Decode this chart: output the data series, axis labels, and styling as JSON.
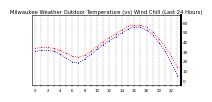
{
  "title": "Milwaukee Weather Outdoor Temperature (vs) Wind Chill (Last 24 Hours)",
  "title_fontsize": 3.8,
  "temp": [
    33,
    34,
    34,
    33,
    31,
    28,
    25,
    24,
    26,
    30,
    35,
    40,
    44,
    48,
    52,
    56,
    57,
    57,
    55,
    50,
    43,
    35,
    25,
    14
  ],
  "windchill": [
    30,
    31,
    31,
    30,
    27,
    23,
    19,
    18,
    22,
    27,
    32,
    37,
    41,
    45,
    49,
    53,
    55,
    55,
    52,
    47,
    39,
    30,
    18,
    5
  ],
  "hours": [
    0,
    1,
    2,
    3,
    4,
    5,
    6,
    7,
    8,
    9,
    10,
    11,
    12,
    13,
    14,
    15,
    16,
    17,
    18,
    19,
    20,
    21,
    22,
    23
  ],
  "temp_color": "#ff0000",
  "windchill_color": "#0000cc",
  "bg_color": "#ffffff",
  "plot_bg": "#ffffff",
  "grid_color": "#888888",
  "ylim_min": -5,
  "ylim_max": 68,
  "ytick_labels": [
    "60",
    "50",
    "40",
    "30",
    "20",
    "10",
    "0"
  ],
  "ytick_vals": [
    60,
    50,
    40,
    30,
    20,
    10,
    0
  ],
  "ylabel_fontsize": 3.0,
  "xtick_fontsize": 2.8,
  "marker_size": 1.5,
  "line_width": 0.0
}
